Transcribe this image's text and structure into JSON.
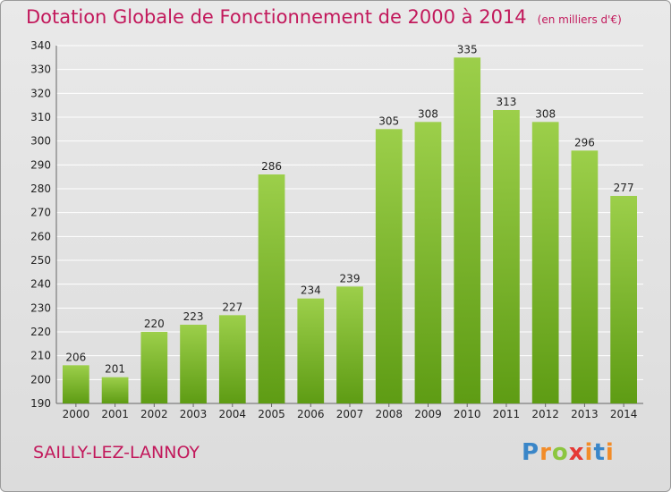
{
  "header": {
    "title": "Dotation Globale de Fonctionnement de 2000 à 2014",
    "subtitle": "(en milliers d'€)"
  },
  "footer": {
    "commune": "SAILLY-LEZ-LANNOY",
    "logo_text": "Proxiti"
  },
  "colors": {
    "title": "#c2185b",
    "bar_light": "#9ccf4a",
    "bar_dark": "#5e9c14",
    "grid": "#ffffff"
  },
  "chart_data": {
    "type": "bar",
    "title": "Dotation Globale de Fonctionnement de 2000 à 2014",
    "subtitle": "(en milliers d'€)",
    "xlabel": "",
    "ylabel": "",
    "categories": [
      "2000",
      "2001",
      "2002",
      "2003",
      "2004",
      "2005",
      "2006",
      "2007",
      "2008",
      "2009",
      "2010",
      "2011",
      "2012",
      "2013",
      "2014"
    ],
    "values": [
      206,
      201,
      220,
      223,
      227,
      286,
      234,
      239,
      305,
      308,
      335,
      313,
      308,
      296,
      277
    ],
    "ylim": [
      190,
      340
    ],
    "yticks": [
      190,
      200,
      210,
      220,
      230,
      240,
      250,
      260,
      270,
      280,
      290,
      300,
      310,
      320,
      330,
      340
    ],
    "grid": true,
    "data_labels": true
  }
}
